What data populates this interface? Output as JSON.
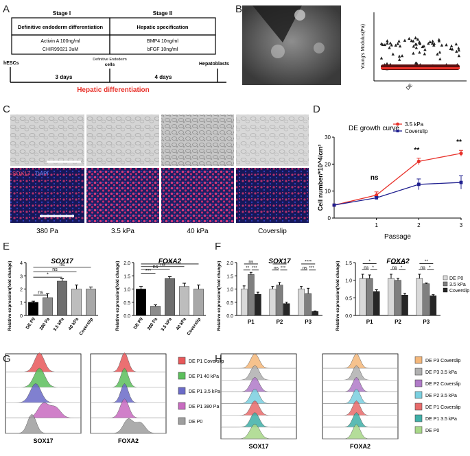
{
  "panels": {
    "A": "A",
    "B": "B",
    "C": "C",
    "D": "D",
    "E": "E",
    "F": "F",
    "G": "G",
    "H": "H"
  },
  "panelA": {
    "stage1": "Stage I",
    "stage2": "Stage II",
    "box1_title": "Definitive endoderm differentiation",
    "box1_line1": "Activin A 100ng/ml",
    "box1_line2": "CHIR99021 3uM",
    "box2_title": "Hepatic specification",
    "box2_line1": "BMP4 10ng/ml",
    "box2_line2": "bFGF 10ng/ml",
    "start": "hESCs",
    "mid_line1": "Definitive Endoderm",
    "mid_line2": "cells",
    "end": "Hepatoblasts",
    "days1": "3 days",
    "days2": "4 days",
    "title": "Hepatic differentiation",
    "title_color": "#e8312a"
  },
  "panelB": {
    "ylabel": "Young's Modulus(Pa)",
    "xlabel": "DE"
  },
  "panelC": {
    "stain_sox17": "SOX17",
    "stain_dapi": "DAPI",
    "labels": [
      "380 Pa",
      "3.5 kPa",
      "40 kPa",
      "Coverslip"
    ]
  },
  "chart_data": [
    {
      "id": "D",
      "type": "line",
      "title": "DE growth curve",
      "xlabel": "Passage",
      "ylabel": "Cell number/*10^4/cm²",
      "x": [
        0,
        1,
        2,
        3
      ],
      "xticks": [
        "1",
        "2",
        "3"
      ],
      "yticks": [
        "0",
        "10",
        "20",
        "30"
      ],
      "ylim": [
        0,
        30
      ],
      "series": [
        {
          "name": "3.5 kPa",
          "color": "#e8312a",
          "values": [
            4.8,
            8.5,
            21,
            24
          ],
          "err": [
            0,
            1.2,
            1.2,
            1.1
          ]
        },
        {
          "name": "Coverslip",
          "color": "#1f1f8f",
          "values": [
            4.8,
            7.5,
            12.5,
            13.2
          ],
          "err": [
            0,
            0.5,
            2,
            2.5
          ]
        }
      ],
      "annotations": [
        "ns",
        "**",
        "**"
      ]
    },
    {
      "id": "E1",
      "type": "bar",
      "title": "SOX17",
      "ylabel": "Relative expression(fold change)",
      "categories": [
        "DE P0",
        "380 Pa",
        "3.5 kPa",
        "40 kPa",
        "Coverslip"
      ],
      "values": [
        1.0,
        1.35,
        2.6,
        2.0,
        2.0
      ],
      "err": [
        0.08,
        0.3,
        0.18,
        0.3,
        0.15
      ],
      "colors": [
        "#000000",
        "#8c8c8c",
        "#6e6e6e",
        "#bdbdbd",
        "#a8a8a8"
      ],
      "ylim": [
        0,
        4
      ],
      "yticks": [
        "0",
        "1",
        "2",
        "3",
        "4"
      ],
      "sig": [
        "ns",
        "*",
        "ns",
        "ns"
      ]
    },
    {
      "id": "E2",
      "type": "bar",
      "title": "FOXA2",
      "ylabel": "Relative expression(fold change)",
      "categories": [
        "DE P0",
        "380 Pa",
        "3.5 kPa",
        "40 kPa",
        "Coverslip"
      ],
      "values": [
        1.0,
        0.35,
        1.4,
        1.1,
        1.0
      ],
      "err": [
        0.1,
        0.05,
        0.07,
        0.12,
        0.15
      ],
      "colors": [
        "#000000",
        "#8c8c8c",
        "#6e6e6e",
        "#bdbdbd",
        "#a8a8a8"
      ],
      "ylim": [
        0,
        2.0
      ],
      "yticks": [
        "0.0",
        "0.5",
        "1.0",
        "1.5",
        "2.0"
      ],
      "sig": [
        "***",
        "ns",
        "ns",
        "ns"
      ]
    },
    {
      "id": "F1",
      "type": "bar",
      "title": "SOX17",
      "ylabel": "Relative expression(fold change)",
      "categories": [
        "P1",
        "P2",
        "P3"
      ],
      "series": [
        {
          "name": "DE P0",
          "color": "#d9d9d9",
          "values": [
            1.0,
            1.0,
            1.0
          ],
          "err": [
            0.12,
            0.1,
            0.1
          ]
        },
        {
          "name": "3.5 kPa",
          "color": "#7f7f7f",
          "values": [
            1.55,
            1.15,
            0.83
          ],
          "err": [
            0.08,
            0.1,
            0.2
          ]
        },
        {
          "name": "Coverslip",
          "color": "#262626",
          "values": [
            0.8,
            0.45,
            0.15
          ],
          "err": [
            0.08,
            0.05,
            0.02
          ]
        }
      ],
      "ylim": [
        0,
        2.0
      ],
      "yticks": [
        "0.0",
        "0.5",
        "1.0",
        "1.5",
        "2.0"
      ],
      "sig": [
        [
          "ns",
          "**",
          "***"
        ],
        [
          "**",
          "ns",
          "***"
        ],
        [
          "****",
          "ns",
          "***"
        ]
      ]
    },
    {
      "id": "F2",
      "type": "bar",
      "title": "FOXA2",
      "ylabel": "Relative expression(fold change)",
      "categories": [
        "P1",
        "P2",
        "P3"
      ],
      "series": [
        {
          "name": "DE P0",
          "color": "#d9d9d9",
          "values": [
            1.05,
            1.05,
            1.05
          ],
          "err": [
            0.12,
            0.12,
            0.12
          ]
        },
        {
          "name": "3.5 kPa",
          "color": "#7f7f7f",
          "values": [
            1.05,
            1.0,
            0.9
          ],
          "err": [
            0.1,
            0.05,
            0.02
          ]
        },
        {
          "name": "Coverslip",
          "color": "#262626",
          "values": [
            0.68,
            0.58,
            0.56
          ],
          "err": [
            0.05,
            0.05,
            0.03
          ]
        }
      ],
      "ylim": [
        0,
        1.5
      ],
      "yticks": [
        "0.0",
        "0.5",
        "1.0",
        "1.5"
      ],
      "sig": [
        [
          "*",
          "ns",
          "*"
        ],
        [
          "**",
          "ns",
          "*"
        ],
        [
          "**",
          "ns",
          "*"
        ]
      ]
    }
  ],
  "panelG": {
    "xlabels": [
      "SOX17",
      "FOXA2"
    ],
    "legend": [
      {
        "label": "DE P1 Coverslip",
        "color": "#e8585a"
      },
      {
        "label": "DE P1 40 kPa",
        "color": "#5cbf5c"
      },
      {
        "label": "DE P1 3.5 kPa",
        "color": "#6b6bc8"
      },
      {
        "label": "DE P1 380 Pa",
        "color": "#c86bc0"
      },
      {
        "label": "DE P0",
        "color": "#9e9e9e"
      }
    ]
  },
  "panelH": {
    "xlabels": [
      "SOX17",
      "FOXA2"
    ],
    "legend": [
      {
        "label": "DE P3 Coverslip",
        "color": "#f5b87a"
      },
      {
        "label": "DE P3 3.5 kPa",
        "color": "#b0b0b0"
      },
      {
        "label": "DE P2 Coverslip",
        "color": "#b07ac8"
      },
      {
        "label": "DE P2 3.5 kPa",
        "color": "#7ad0e0"
      },
      {
        "label": "DE P1 Coverslip",
        "color": "#e86b6b"
      },
      {
        "label": "DE P1 3.5 kPa",
        "color": "#3fb0a8"
      },
      {
        "label": "DE P0",
        "color": "#a8d888"
      }
    ]
  }
}
